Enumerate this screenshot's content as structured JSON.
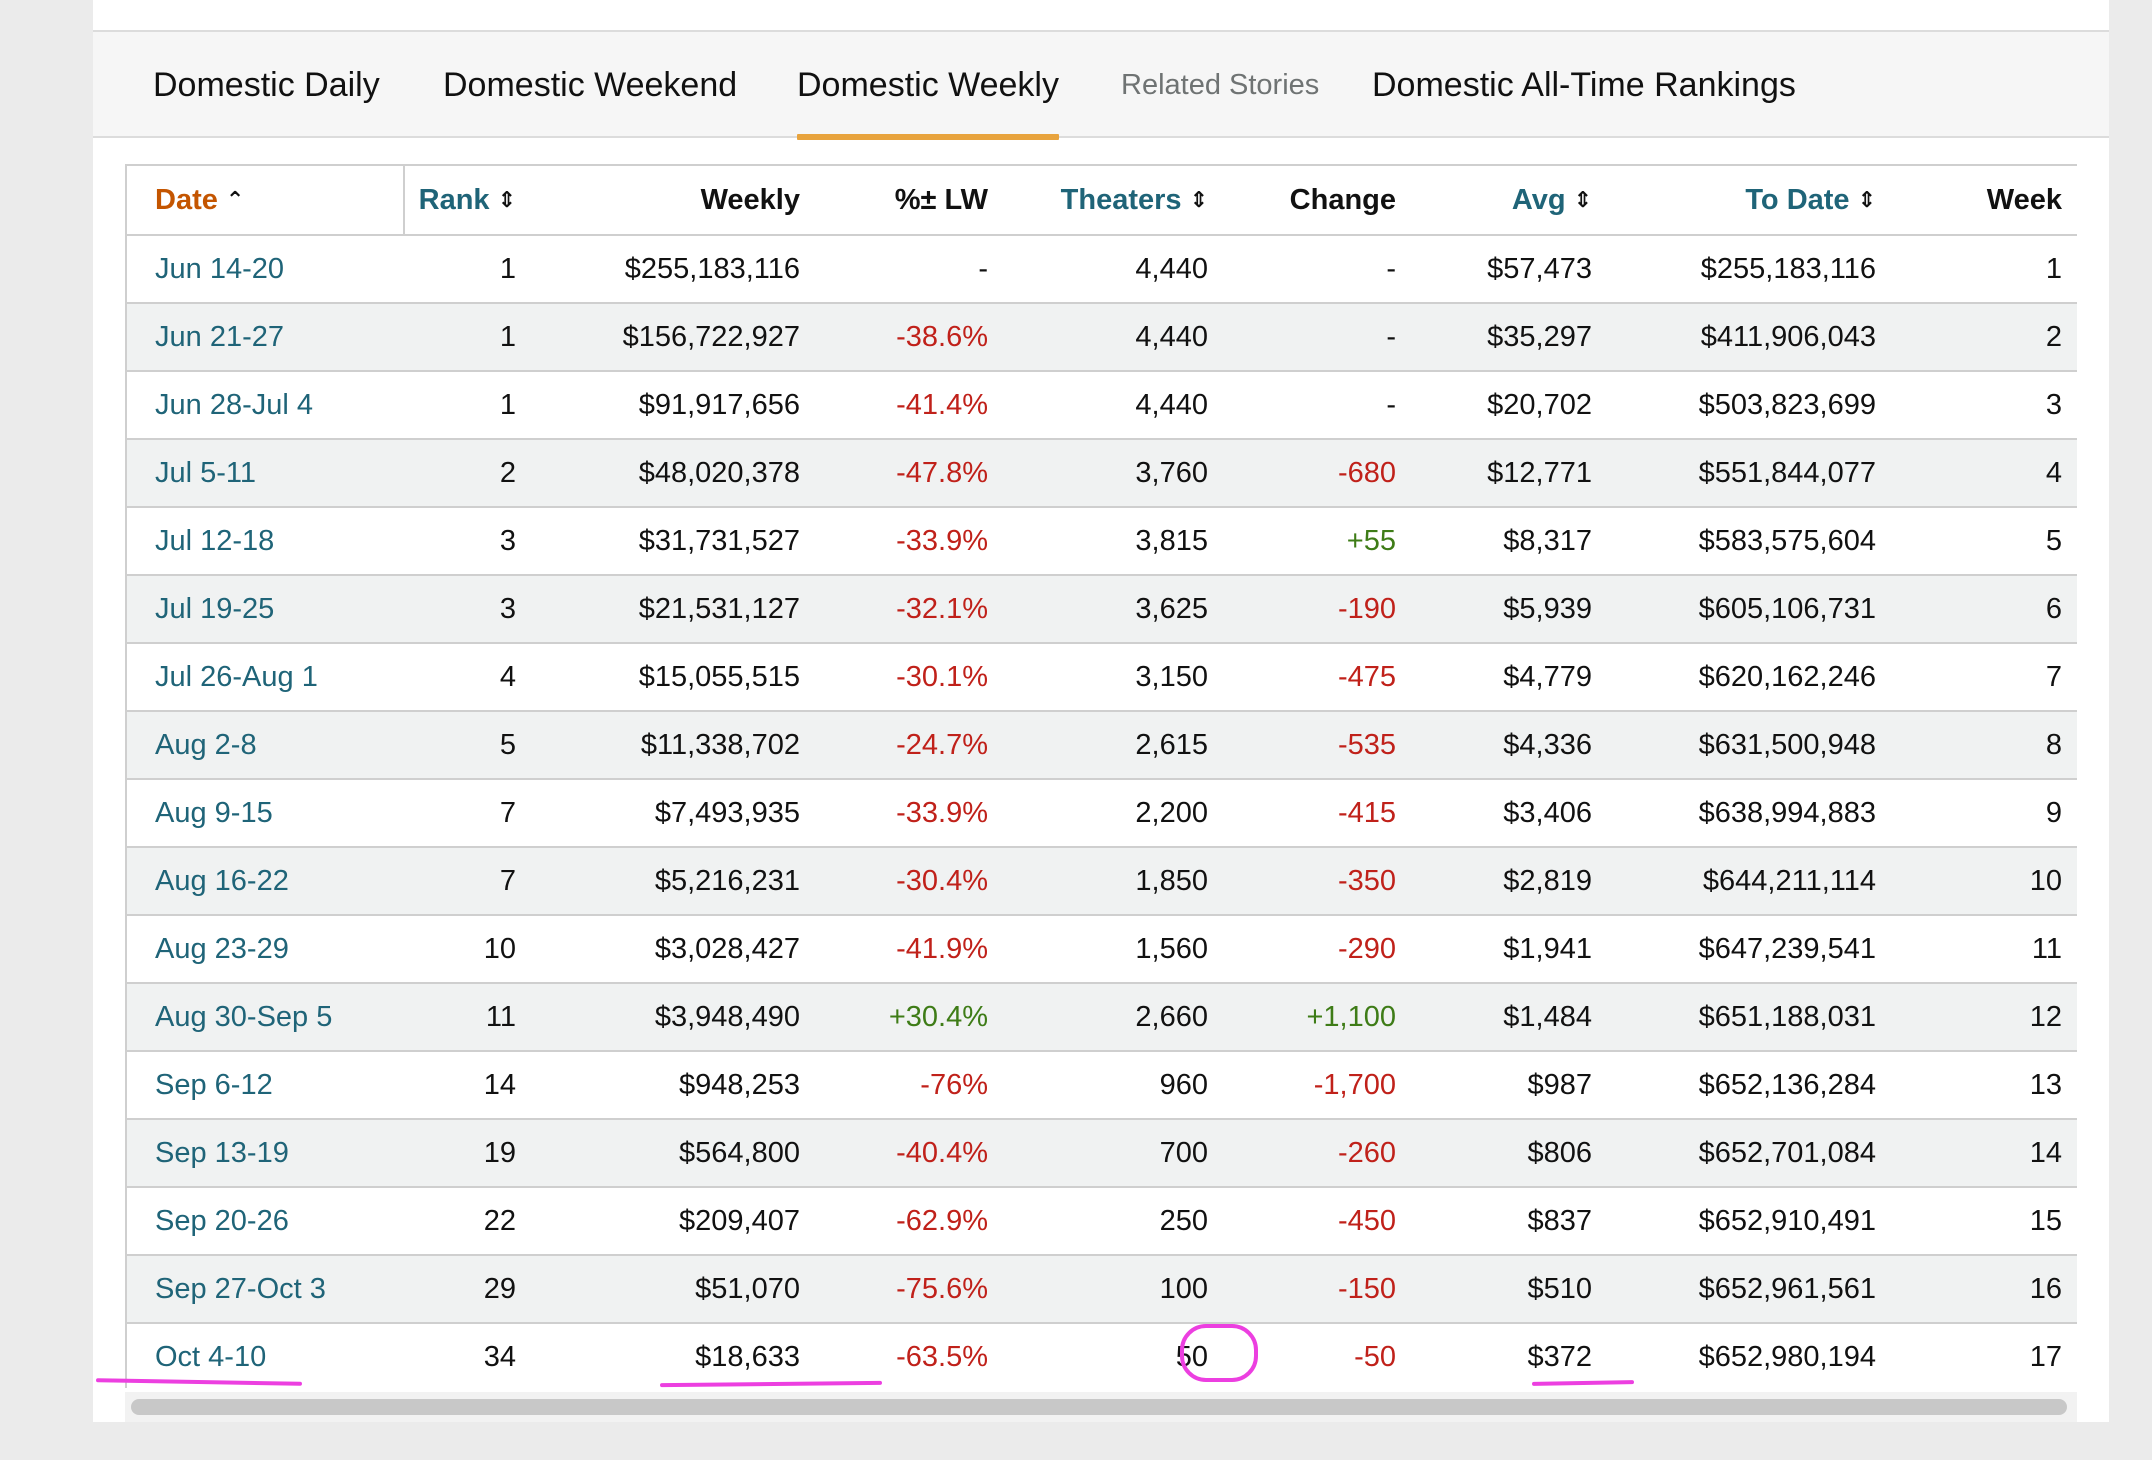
{
  "tabs": [
    {
      "label": "Domestic Daily",
      "active": false
    },
    {
      "label": "Domestic Weekend",
      "active": false
    },
    {
      "label": "Domestic Weekly",
      "active": true
    },
    {
      "label": "Related Stories",
      "active": false
    },
    {
      "label": "Domestic All-Time Rankings",
      "active": false
    }
  ],
  "columns": [
    {
      "label": "Date",
      "sortable": true,
      "sort_icon": "caret-up-icon"
    },
    {
      "label": "Rank",
      "sortable": true,
      "sort_icon": "sort-icon"
    },
    {
      "label": "Weekly",
      "sortable": false
    },
    {
      "label": "%± LW",
      "sortable": false
    },
    {
      "label": "Theaters",
      "sortable": true,
      "sort_icon": "sort-icon"
    },
    {
      "label": "Change",
      "sortable": false
    },
    {
      "label": "Avg",
      "sortable": true,
      "sort_icon": "sort-icon"
    },
    {
      "label": "To Date",
      "sortable": true,
      "sort_icon": "sort-icon"
    },
    {
      "label": "Week",
      "sortable": false
    }
  ],
  "rows": [
    {
      "date": "Jun 14-20",
      "rank": "1",
      "weekly": "$255,183,116",
      "pct_lw": "-",
      "theaters": "4,440",
      "change": "-",
      "avg": "$57,473",
      "to_date": "$255,183,116",
      "week": "1"
    },
    {
      "date": "Jun 21-27",
      "rank": "1",
      "weekly": "$156,722,927",
      "pct_lw": "-38.6%",
      "theaters": "4,440",
      "change": "-",
      "avg": "$35,297",
      "to_date": "$411,906,043",
      "week": "2"
    },
    {
      "date": "Jun 28-Jul 4",
      "rank": "1",
      "weekly": "$91,917,656",
      "pct_lw": "-41.4%",
      "theaters": "4,440",
      "change": "-",
      "avg": "$20,702",
      "to_date": "$503,823,699",
      "week": "3"
    },
    {
      "date": "Jul 5-11",
      "rank": "2",
      "weekly": "$48,020,378",
      "pct_lw": "-47.8%",
      "theaters": "3,760",
      "change": "-680",
      "avg": "$12,771",
      "to_date": "$551,844,077",
      "week": "4"
    },
    {
      "date": "Jul 12-18",
      "rank": "3",
      "weekly": "$31,731,527",
      "pct_lw": "-33.9%",
      "theaters": "3,815",
      "change": "+55",
      "avg": "$8,317",
      "to_date": "$583,575,604",
      "week": "5"
    },
    {
      "date": "Jul 19-25",
      "rank": "3",
      "weekly": "$21,531,127",
      "pct_lw": "-32.1%",
      "theaters": "3,625",
      "change": "-190",
      "avg": "$5,939",
      "to_date": "$605,106,731",
      "week": "6"
    },
    {
      "date": "Jul 26-Aug 1",
      "rank": "4",
      "weekly": "$15,055,515",
      "pct_lw": "-30.1%",
      "theaters": "3,150",
      "change": "-475",
      "avg": "$4,779",
      "to_date": "$620,162,246",
      "week": "7"
    },
    {
      "date": "Aug 2-8",
      "rank": "5",
      "weekly": "$11,338,702",
      "pct_lw": "-24.7%",
      "theaters": "2,615",
      "change": "-535",
      "avg": "$4,336",
      "to_date": "$631,500,948",
      "week": "8"
    },
    {
      "date": "Aug 9-15",
      "rank": "7",
      "weekly": "$7,493,935",
      "pct_lw": "-33.9%",
      "theaters": "2,200",
      "change": "-415",
      "avg": "$3,406",
      "to_date": "$638,994,883",
      "week": "9"
    },
    {
      "date": "Aug 16-22",
      "rank": "7",
      "weekly": "$5,216,231",
      "pct_lw": "-30.4%",
      "theaters": "1,850",
      "change": "-350",
      "avg": "$2,819",
      "to_date": "$644,211,114",
      "week": "10"
    },
    {
      "date": "Aug 23-29",
      "rank": "10",
      "weekly": "$3,028,427",
      "pct_lw": "-41.9%",
      "theaters": "1,560",
      "change": "-290",
      "avg": "$1,941",
      "to_date": "$647,239,541",
      "week": "11"
    },
    {
      "date": "Aug 30-Sep 5",
      "rank": "11",
      "weekly": "$3,948,490",
      "pct_lw": "+30.4%",
      "theaters": "2,660",
      "change": "+1,100",
      "avg": "$1,484",
      "to_date": "$651,188,031",
      "week": "12"
    },
    {
      "date": "Sep 6-12",
      "rank": "14",
      "weekly": "$948,253",
      "pct_lw": "-76%",
      "theaters": "960",
      "change": "-1,700",
      "avg": "$987",
      "to_date": "$652,136,284",
      "week": "13"
    },
    {
      "date": "Sep 13-19",
      "rank": "19",
      "weekly": "$564,800",
      "pct_lw": "-40.4%",
      "theaters": "700",
      "change": "-260",
      "avg": "$806",
      "to_date": "$652,701,084",
      "week": "14"
    },
    {
      "date": "Sep 20-26",
      "rank": "22",
      "weekly": "$209,407",
      "pct_lw": "-62.9%",
      "theaters": "250",
      "change": "-450",
      "avg": "$837",
      "to_date": "$652,910,491",
      "week": "15"
    },
    {
      "date": "Sep 27-Oct 3",
      "rank": "29",
      "weekly": "$51,070",
      "pct_lw": "-75.6%",
      "theaters": "100",
      "change": "-150",
      "avg": "$510",
      "to_date": "$652,961,561",
      "week": "16"
    },
    {
      "date": "Oct 4-10",
      "rank": "34",
      "weekly": "$18,633",
      "pct_lw": "-63.5%",
      "theaters": "50",
      "change": "-50",
      "avg": "$372",
      "to_date": "$652,980,194",
      "week": "17"
    }
  ],
  "colors": {
    "link": "#1f6478",
    "active_sort": "#c45500",
    "negative": "#c0211a",
    "positive": "#3e7c17",
    "tab_underline": "#e8a33d",
    "annotation": "#ec3fe0"
  }
}
